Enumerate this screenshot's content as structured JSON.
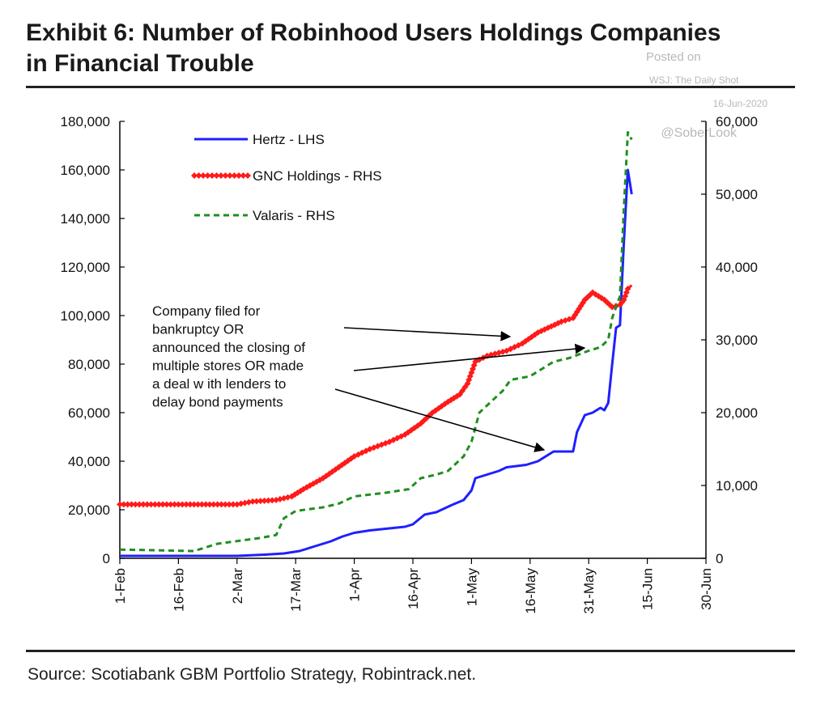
{
  "header": {
    "title_line1": "Exhibit 6: Number of Robinhood Users Holdings Companies",
    "title_line2": "in Financial Trouble",
    "posted_on": "Posted on",
    "posted_source": "WSJ: The Daily Shot",
    "posted_date": "16-Jun-2020",
    "watermark": "@SoberLook"
  },
  "footer": {
    "source": "Source: Scotiabank GBM Portfolio Strategy, Robintrack.net."
  },
  "annotation": {
    "lines": [
      "Company  filed for",
      "bankruptcy OR",
      "announced the closing of",
      "multiple  stores OR made",
      "a deal w ith lenders to",
      "delay bond payments"
    ]
  },
  "colors": {
    "hertz": "#1f1fff",
    "gnc": "#ff1a1a",
    "valaris": "#1f8f1f",
    "axis": "#000000",
    "rule": "#222222",
    "credit": "#b8b8b8"
  },
  "chart_data": {
    "type": "line",
    "title": "Exhibit 6: Number of Robinhood Users Holdings Companies in Financial Trouble",
    "x_tick_labels": [
      "1-Feb",
      "16-Feb",
      "2-Mar",
      "17-Mar",
      "1-Apr",
      "16-Apr",
      "1-May",
      "16-May",
      "31-May",
      "15-Jun",
      "30-Jun"
    ],
    "x_ticks": [
      "2020-02-01",
      "2020-02-16",
      "2020-03-02",
      "2020-03-17",
      "2020-04-01",
      "2020-04-16",
      "2020-05-01",
      "2020-05-16",
      "2020-05-31",
      "2020-06-15",
      "2020-06-30"
    ],
    "xlim": [
      "2020-02-01",
      "2020-06-30"
    ],
    "y_left": {
      "ylim": [
        0,
        180000
      ],
      "tick_labels": [
        "0",
        "20,000",
        "40,000",
        "60,000",
        "80,000",
        "100,000",
        "120,000",
        "140,000",
        "160,000",
        "180,000"
      ],
      "ticks": [
        0,
        20000,
        40000,
        60000,
        80000,
        100000,
        120000,
        140000,
        160000,
        180000
      ]
    },
    "y_right": {
      "ylim": [
        0,
        60000
      ],
      "tick_labels": [
        "0",
        "10,000",
        "20,000",
        "30,000",
        "40,000",
        "50,000",
        "60,000"
      ],
      "ticks": [
        0,
        10000,
        20000,
        30000,
        40000,
        50000,
        60000
      ]
    },
    "legend_position": "top-left",
    "grid": false,
    "series": [
      {
        "name": "Hertz - LHS",
        "axis": "left",
        "style": "solid",
        "points": [
          [
            "2020-02-01",
            1000
          ],
          [
            "2020-03-02",
            1000
          ],
          [
            "2020-03-09",
            1500
          ],
          [
            "2020-03-14",
            2000
          ],
          [
            "2020-03-18",
            3000
          ],
          [
            "2020-03-22",
            5000
          ],
          [
            "2020-03-26",
            7000
          ],
          [
            "2020-03-29",
            9000
          ],
          [
            "2020-04-01",
            10500
          ],
          [
            "2020-04-05",
            11500
          ],
          [
            "2020-04-08",
            12000
          ],
          [
            "2020-04-14",
            13000
          ],
          [
            "2020-04-16",
            14000
          ],
          [
            "2020-04-19",
            18000
          ],
          [
            "2020-04-22",
            19000
          ],
          [
            "2020-04-26",
            22000
          ],
          [
            "2020-04-29",
            24000
          ],
          [
            "2020-05-01",
            28000
          ],
          [
            "2020-05-02",
            33000
          ],
          [
            "2020-05-05",
            34500
          ],
          [
            "2020-05-08",
            36000
          ],
          [
            "2020-05-10",
            37500
          ],
          [
            "2020-05-15",
            38500
          ],
          [
            "2020-05-18",
            40000
          ],
          [
            "2020-05-20",
            42000
          ],
          [
            "2020-05-22",
            44000
          ],
          [
            "2020-05-27",
            44000
          ],
          [
            "2020-05-28",
            52000
          ],
          [
            "2020-05-30",
            59000
          ],
          [
            "2020-06-01",
            60000
          ],
          [
            "2020-06-03",
            62000
          ],
          [
            "2020-06-04",
            61000
          ],
          [
            "2020-06-05",
            64000
          ],
          [
            "2020-06-06",
            80000
          ],
          [
            "2020-06-07",
            95000
          ],
          [
            "2020-06-08",
            96000
          ],
          [
            "2020-06-09",
            130000
          ],
          [
            "2020-06-10",
            160000
          ],
          [
            "2020-06-11",
            150000
          ]
        ]
      },
      {
        "name": "GNC Holdings - RHS",
        "axis": "right",
        "style": "solid-markers",
        "points": [
          [
            "2020-02-01",
            7400
          ],
          [
            "2020-03-02",
            7400
          ],
          [
            "2020-03-06",
            7800
          ],
          [
            "2020-03-12",
            8000
          ],
          [
            "2020-03-16",
            8500
          ],
          [
            "2020-03-19",
            9500
          ],
          [
            "2020-03-24",
            11000
          ],
          [
            "2020-03-28",
            12500
          ],
          [
            "2020-04-01",
            14000
          ],
          [
            "2020-04-05",
            15000
          ],
          [
            "2020-04-10",
            16000
          ],
          [
            "2020-04-14",
            17000
          ],
          [
            "2020-04-18",
            18500
          ],
          [
            "2020-04-21",
            20000
          ],
          [
            "2020-04-25",
            21500
          ],
          [
            "2020-04-28",
            22500
          ],
          [
            "2020-04-30",
            24000
          ],
          [
            "2020-05-02",
            27000
          ],
          [
            "2020-05-05",
            27800
          ],
          [
            "2020-05-10",
            28500
          ],
          [
            "2020-05-14",
            29500
          ],
          [
            "2020-05-18",
            31000
          ],
          [
            "2020-05-24",
            32500
          ],
          [
            "2020-05-27",
            33000
          ],
          [
            "2020-05-30",
            35500
          ],
          [
            "2020-06-01",
            36500
          ],
          [
            "2020-06-04",
            35500
          ],
          [
            "2020-06-06",
            34500
          ],
          [
            "2020-06-08",
            34800
          ],
          [
            "2020-06-09",
            35500
          ],
          [
            "2020-06-10",
            37000
          ],
          [
            "2020-06-11",
            37500
          ]
        ]
      },
      {
        "name": "Valaris - RHS",
        "axis": "right",
        "style": "dashed",
        "points": [
          [
            "2020-02-01",
            1200
          ],
          [
            "2020-02-20",
            1000
          ],
          [
            "2020-02-26",
            2000
          ],
          [
            "2020-03-08",
            2800
          ],
          [
            "2020-03-12",
            3200
          ],
          [
            "2020-03-14",
            5500
          ],
          [
            "2020-03-17",
            6500
          ],
          [
            "2020-03-24",
            7000
          ],
          [
            "2020-03-28",
            7500
          ],
          [
            "2020-04-01",
            8500
          ],
          [
            "2020-04-09",
            9000
          ],
          [
            "2020-04-15",
            9500
          ],
          [
            "2020-04-18",
            11000
          ],
          [
            "2020-04-22",
            11500
          ],
          [
            "2020-04-25",
            12000
          ],
          [
            "2020-04-29",
            14000
          ],
          [
            "2020-05-01",
            16000
          ],
          [
            "2020-05-03",
            20000
          ],
          [
            "2020-05-05",
            21000
          ],
          [
            "2020-05-09",
            23000
          ],
          [
            "2020-05-11",
            24500
          ],
          [
            "2020-05-16",
            25000
          ],
          [
            "2020-05-19",
            26000
          ],
          [
            "2020-05-22",
            27000
          ],
          [
            "2020-05-26",
            27500
          ],
          [
            "2020-05-31",
            28500
          ],
          [
            "2020-06-03",
            29000
          ],
          [
            "2020-06-05",
            30000
          ],
          [
            "2020-06-06",
            33000
          ],
          [
            "2020-06-07",
            34500
          ],
          [
            "2020-06-08",
            36000
          ],
          [
            "2020-06-09",
            48000
          ],
          [
            "2020-06-10",
            58500
          ],
          [
            "2020-06-11",
            57500
          ]
        ]
      }
    ]
  }
}
